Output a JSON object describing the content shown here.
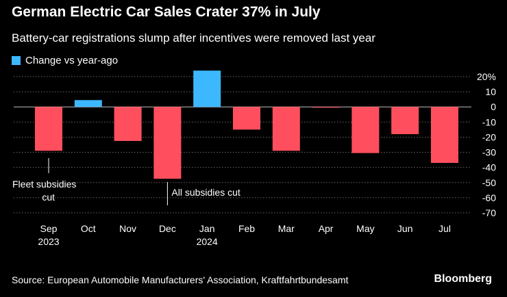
{
  "colors": {
    "background": "#000000",
    "positive": "#3db8ff",
    "negative": "#ff4f5e",
    "grid": "#6a6a6a",
    "text": "#ffffff"
  },
  "chart_data": {
    "type": "bar",
    "title": "German Electric Car Sales Crater 37% in July",
    "subtitle": "Battery-car registrations slump after incentives were removed last year",
    "legend": [
      "Change vs year-ago"
    ],
    "legend_position": "top-left",
    "categories": [
      "Sep",
      "Oct",
      "Nov",
      "Dec",
      "Jan",
      "Feb",
      "Mar",
      "Apr",
      "May",
      "Jun",
      "Jul"
    ],
    "year_labels": [
      {
        "category": "Sep",
        "label": "2023"
      },
      {
        "category": "Jan",
        "label": "2024"
      }
    ],
    "series": [
      {
        "name": "Change vs year-ago",
        "values": [
          -29,
          4.5,
          -22.5,
          -47.5,
          24,
          -15,
          -29,
          -0.5,
          -30.5,
          -18,
          -37
        ]
      }
    ],
    "ylim": [
      -70,
      20
    ],
    "yticks": [
      20,
      10,
      0,
      -10,
      -20,
      -30,
      -40,
      -50,
      -60,
      -70
    ],
    "ytick_labels": [
      "20%",
      "10",
      "0",
      "-10",
      "-20",
      "-30",
      "-40",
      "-50",
      "-60",
      "-70"
    ],
    "grid": true,
    "annotations": [
      {
        "category": "Sep",
        "text_lines": [
          "Fleet subsidies",
          "cut"
        ]
      },
      {
        "category": "Dec",
        "text_lines": [
          "All subsidies cut"
        ]
      }
    ]
  },
  "footer": {
    "source": "Source: European Automobile Manufacturers' Association, Kraftfahrtbundesamt",
    "brand": "Bloomberg"
  }
}
